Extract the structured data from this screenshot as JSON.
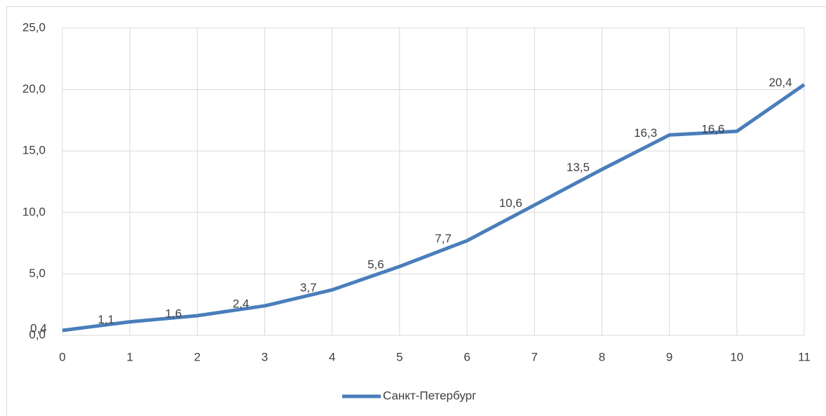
{
  "chart_data": {
    "type": "line",
    "x": [
      0,
      1,
      2,
      3,
      4,
      5,
      6,
      7,
      8,
      9,
      10,
      11
    ],
    "series": [
      {
        "name": "Санкт-Петербург",
        "color": "#4a7ebb",
        "values": [
          0.4,
          1.1,
          1.6,
          2.4,
          3.7,
          5.6,
          7.7,
          10.6,
          13.5,
          16.3,
          16.6,
          20.4
        ],
        "value_labels": [
          "0,4",
          "1,1",
          "1,6",
          "2,4",
          "3,7",
          "5,6",
          "7,7",
          "10,6",
          "13,5",
          "16,3",
          "16,6",
          "20,4"
        ]
      }
    ],
    "xlim": [
      0,
      11
    ],
    "xticks": [
      0,
      1,
      2,
      3,
      4,
      5,
      6,
      7,
      8,
      9,
      10,
      11
    ],
    "ylim": [
      0,
      25
    ],
    "yticks": [
      {
        "value": 0,
        "label": "0,0"
      },
      {
        "value": 5,
        "label": "5,0"
      },
      {
        "value": 10,
        "label": "10,0"
      },
      {
        "value": 15,
        "label": "15,0"
      },
      {
        "value": 20,
        "label": "20,0"
      },
      {
        "value": 25,
        "label": "25,0"
      }
    ],
    "grid": true,
    "legend": "bottom"
  }
}
